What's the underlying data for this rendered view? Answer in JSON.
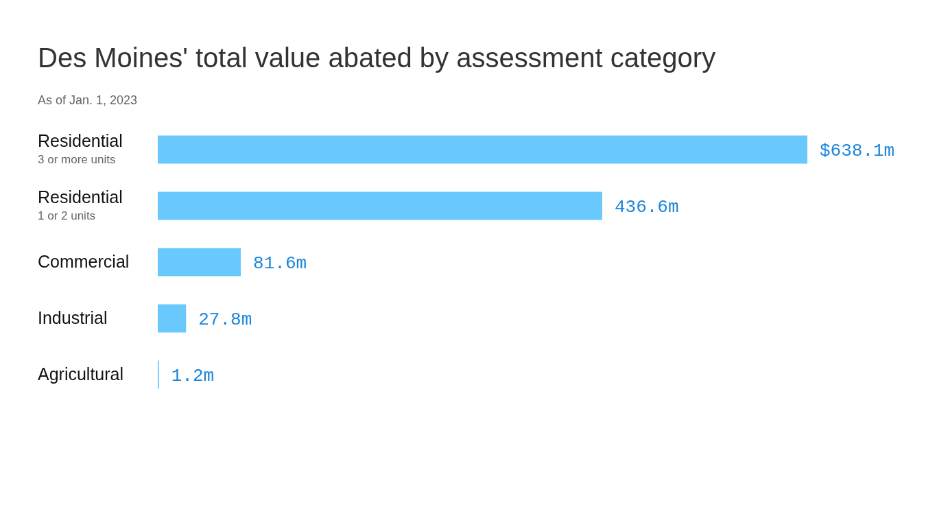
{
  "chart_data": {
    "type": "bar",
    "orientation": "horizontal",
    "title": "Des Moines' total value abated by assessment category",
    "subtitle": "As of Jan. 1, 2023",
    "categories": [
      "Residential\n3 or more units",
      "Residential\n1 or 2 units",
      "Commercial",
      "Industrial",
      "Agricultural"
    ],
    "values": [
      638.1,
      436.6,
      81.6,
      27.8,
      1.2
    ],
    "value_labels": [
      "$638.1m",
      "436.6m",
      "81.6m",
      "27.8m",
      "1.2m"
    ],
    "color": "#69c9fd",
    "grid": false,
    "legend": false
  }
}
